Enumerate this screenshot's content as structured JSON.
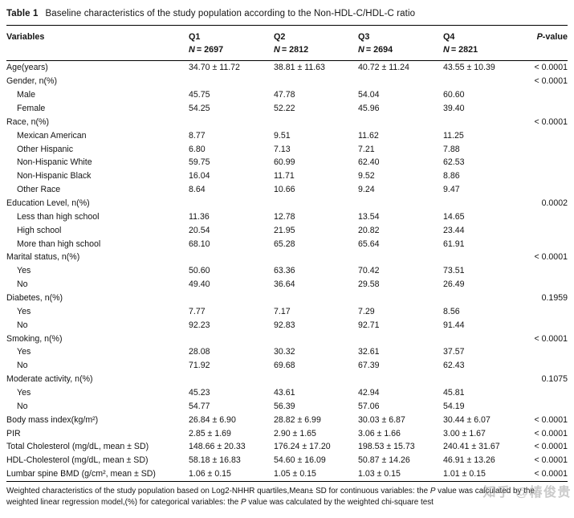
{
  "title": {
    "label": "Table 1",
    "text": "Baseline characteristics of the study population according to the Non-HDL-C/HDL-C ratio"
  },
  "columns": {
    "variable": "Variables",
    "quartiles": [
      {
        "label": "Q1",
        "n_symbol": "N",
        "n_rest": "= 2697"
      },
      {
        "label": "Q2",
        "n_symbol": "N",
        "n_rest": "= 2812"
      },
      {
        "label": "Q3",
        "n_symbol": "N",
        "n_rest": "= 2694"
      },
      {
        "label": "Q4",
        "n_symbol": "N",
        "n_rest": "= 2821"
      }
    ],
    "p_symbol": "P",
    "p_suffix": "-value"
  },
  "rows": [
    {
      "label": "Age(years)",
      "indent": false,
      "values": [
        "34.70 ± 11.72",
        "38.81 ± 11.63",
        "40.72 ± 11.24",
        "43.55 ± 10.39"
      ],
      "p": "< 0.0001"
    },
    {
      "label": "Gender, n(%)",
      "indent": false,
      "values": [
        "",
        "",
        "",
        ""
      ],
      "p": "< 0.0001"
    },
    {
      "label": "Male",
      "indent": true,
      "values": [
        "45.75",
        "47.78",
        "54.04",
        "60.60"
      ],
      "p": ""
    },
    {
      "label": "Female",
      "indent": true,
      "values": [
        "54.25",
        "52.22",
        "45.96",
        "39.40"
      ],
      "p": ""
    },
    {
      "label": "Race, n(%)",
      "indent": false,
      "values": [
        "",
        "",
        "",
        ""
      ],
      "p": "< 0.0001"
    },
    {
      "label": "Mexican American",
      "indent": true,
      "values": [
        "8.77",
        "9.51",
        "11.62",
        "11.25"
      ],
      "p": ""
    },
    {
      "label": "Other Hispanic",
      "indent": true,
      "values": [
        "6.80",
        "7.13",
        "7.21",
        "7.88"
      ],
      "p": ""
    },
    {
      "label": "Non-Hispanic White",
      "indent": true,
      "values": [
        "59.75",
        "60.99",
        "62.40",
        "62.53"
      ],
      "p": ""
    },
    {
      "label": "Non-Hispanic Black",
      "indent": true,
      "values": [
        "16.04",
        "11.71",
        "9.52",
        "8.86"
      ],
      "p": ""
    },
    {
      "label": "Other Race",
      "indent": true,
      "values": [
        "8.64",
        "10.66",
        "9.24",
        "9.47"
      ],
      "p": ""
    },
    {
      "label": "Education Level, n(%)",
      "indent": false,
      "values": [
        "",
        "",
        "",
        ""
      ],
      "p": "0.0002"
    },
    {
      "label": "Less than high school",
      "indent": true,
      "values": [
        "11.36",
        "12.78",
        "13.54",
        "14.65"
      ],
      "p": ""
    },
    {
      "label": "High school",
      "indent": true,
      "values": [
        "20.54",
        "21.95",
        "20.82",
        "23.44"
      ],
      "p": ""
    },
    {
      "label": "More than high school",
      "indent": true,
      "values": [
        "68.10",
        "65.28",
        "65.64",
        "61.91"
      ],
      "p": ""
    },
    {
      "label": "Marital status, n(%)",
      "indent": false,
      "values": [
        "",
        "",
        "",
        ""
      ],
      "p": "< 0.0001"
    },
    {
      "label": "Yes",
      "indent": true,
      "values": [
        "50.60",
        "63.36",
        "70.42",
        "73.51"
      ],
      "p": ""
    },
    {
      "label": "No",
      "indent": true,
      "values": [
        "49.40",
        "36.64",
        "29.58",
        "26.49"
      ],
      "p": ""
    },
    {
      "label": "Diabetes, n(%)",
      "indent": false,
      "values": [
        "",
        "",
        "",
        ""
      ],
      "p": "0.1959"
    },
    {
      "label": "Yes",
      "indent": true,
      "values": [
        "7.77",
        "7.17",
        "7.29",
        "8.56"
      ],
      "p": ""
    },
    {
      "label": "No",
      "indent": true,
      "values": [
        "92.23",
        "92.83",
        "92.71",
        "91.44"
      ],
      "p": ""
    },
    {
      "label": "Smoking, n(%)",
      "indent": false,
      "values": [
        "",
        "",
        "",
        ""
      ],
      "p": "< 0.0001"
    },
    {
      "label": "Yes",
      "indent": true,
      "values": [
        "28.08",
        "30.32",
        "32.61",
        "37.57"
      ],
      "p": ""
    },
    {
      "label": "No",
      "indent": true,
      "values": [
        "71.92",
        "69.68",
        "67.39",
        "62.43"
      ],
      "p": ""
    },
    {
      "label": "Moderate activity, n(%)",
      "indent": false,
      "values": [
        "",
        "",
        "",
        ""
      ],
      "p": "0.1075"
    },
    {
      "label": "Yes",
      "indent": true,
      "values": [
        "45.23",
        "43.61",
        "42.94",
        "45.81"
      ],
      "p": ""
    },
    {
      "label": "No",
      "indent": true,
      "values": [
        "54.77",
        "56.39",
        "57.06",
        "54.19"
      ],
      "p": ""
    },
    {
      "label": "Body mass index(kg/m²)",
      "indent": false,
      "values": [
        "26.84 ± 6.90",
        "28.82 ± 6.99",
        "30.03 ± 6.87",
        "30.44 ± 6.07"
      ],
      "p": "< 0.0001"
    },
    {
      "label": "PIR",
      "indent": false,
      "values": [
        "2.85 ± 1.69",
        "2.90 ± 1.65",
        "3.06 ± 1.66",
        "3.00 ± 1.67"
      ],
      "p": "< 0.0001"
    },
    {
      "label": "Total Cholesterol (mg/dL, mean ± SD)",
      "indent": false,
      "values": [
        "148.66 ± 20.33",
        "176.24 ± 17.20",
        "198.53 ± 15.73",
        "240.41 ± 31.67"
      ],
      "p": "< 0.0001"
    },
    {
      "label": "HDL-Cholesterol (mg/dL, mean ± SD)",
      "indent": false,
      "values": [
        "58.18 ± 16.83",
        "54.60 ± 16.09",
        "50.87 ± 14.26",
        "46.91 ± 13.26"
      ],
      "p": "< 0.0001"
    },
    {
      "label": "Lumbar spine BMD (g/cm², mean ± SD)",
      "indent": false,
      "values": [
        "1.06 ± 0.15",
        "1.05 ± 0.15",
        "1.03 ± 0.15",
        "1.01 ± 0.15"
      ],
      "p": "< 0.0001"
    }
  ],
  "footnote_parts": [
    "Weighted characteristics of the study population based on Log2-NHHR quartiles,Mean± SD for continuous variables: the ",
    "P",
    " value was calculated by the weighted linear regression model,(%) for categorical variables: the ",
    "P",
    " value was calculated by the weighted chi-square test"
  ],
  "watermark": "知乎 @椿俊贵"
}
